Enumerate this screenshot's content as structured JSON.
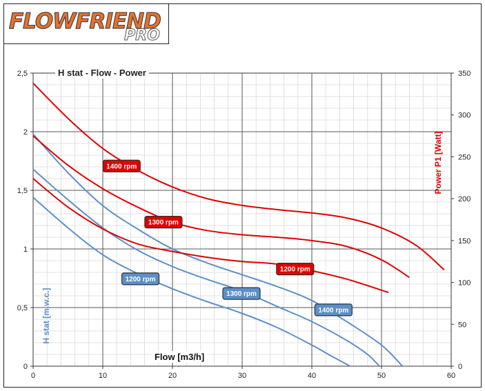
{
  "logo": {
    "main": "FLOWFRIEND",
    "sub": "PRO"
  },
  "colors": {
    "power": "#e00000",
    "head": "#5b8fc9"
  },
  "chart_data": {
    "type": "line",
    "title": "H stat - Flow - Power",
    "xlabel": "Flow [m3/h]",
    "ylabel_left": "H stat [m.w.c.]",
    "ylabel_right": "Power P1  [Watt]",
    "xlim": [
      0,
      60
    ],
    "ylim_left": [
      0,
      2.5
    ],
    "ylim_right": [
      0,
      350
    ],
    "x_ticks": [
      "0",
      "10",
      "20",
      "30",
      "40",
      "50",
      "60"
    ],
    "y_left_ticks": [
      "0",
      "0,5",
      "1",
      "1,5",
      "2",
      "2,5"
    ],
    "y_right_ticks": [
      "0",
      "50",
      "100",
      "150",
      "200",
      "250",
      "300",
      "350"
    ],
    "grid": true,
    "head_series": [
      {
        "name": "1200 rpm",
        "x": [
          0,
          5,
          10,
          15,
          20,
          25,
          30,
          35,
          40,
          43,
          45.5
        ],
        "y": [
          1.44,
          1.18,
          0.95,
          0.79,
          0.66,
          0.55,
          0.45,
          0.33,
          0.18,
          0.08,
          0.0
        ]
      },
      {
        "name": "1300 rpm",
        "x": [
          0,
          5,
          10,
          15,
          20,
          25,
          30,
          35,
          40,
          45,
          48,
          49.7
        ],
        "y": [
          1.68,
          1.42,
          1.18,
          0.99,
          0.85,
          0.74,
          0.64,
          0.51,
          0.38,
          0.22,
          0.1,
          0.0
        ]
      },
      {
        "name": "1400 rpm",
        "x": [
          0,
          5,
          10,
          15,
          20,
          25,
          30,
          35,
          40,
          45,
          50,
          53
        ],
        "y": [
          1.98,
          1.65,
          1.37,
          1.17,
          1.0,
          0.88,
          0.78,
          0.68,
          0.56,
          0.38,
          0.18,
          0.0
        ]
      }
    ],
    "power_series": [
      {
        "name": "1200 rpm",
        "x": [
          0,
          5,
          10,
          15,
          20,
          25,
          30,
          35,
          40,
          45,
          51
        ],
        "y": [
          224,
          190,
          164,
          146,
          137,
          130,
          125,
          122,
          114,
          104,
          88
        ]
      },
      {
        "name": "1300 rpm",
        "x": [
          0,
          5,
          10,
          15,
          20,
          25,
          30,
          35,
          40,
          45,
          50,
          54
        ],
        "y": [
          275,
          240,
          212,
          190,
          172,
          162,
          157,
          154,
          150,
          143,
          127,
          106
        ]
      },
      {
        "name": "1400 rpm",
        "x": [
          0,
          5,
          10,
          15,
          20,
          25,
          30,
          35,
          40,
          45,
          50,
          55,
          59
        ],
        "y": [
          338,
          296,
          260,
          234,
          214,
          200,
          192,
          187,
          183,
          177,
          165,
          144,
          115
        ]
      }
    ],
    "rpm_labels": {
      "power": [
        {
          "text": "1400 rpm",
          "x": 12.7,
          "y": 239
        },
        {
          "text": "1300 rpm",
          "x": 18.7,
          "y": 172
        },
        {
          "text": "1200 rpm",
          "x": 37.6,
          "y": 116
        }
      ],
      "head": [
        {
          "text": "1200 rpm",
          "x": 15.4,
          "y": 0.745
        },
        {
          "text": "1300 rpm",
          "x": 29.9,
          "y": 0.62
        },
        {
          "text": "1400 rpm",
          "x": 43.1,
          "y": 0.48
        }
      ]
    }
  }
}
